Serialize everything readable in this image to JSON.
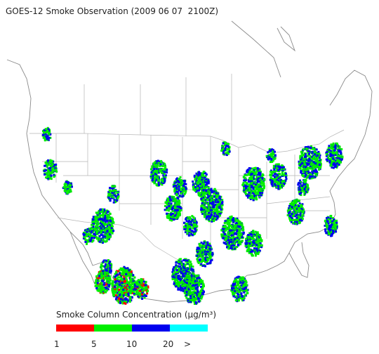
{
  "title": "GOES-12 Smoke Observation (2009 06 07  2100Z)",
  "legend": {
    "title": "Smoke Column Concentration (μg/m³)",
    "colors": [
      "#ff0000",
      "#00ee00",
      "#0000ee",
      "#00ffff"
    ],
    "labels": [
      "1",
      "5",
      "10",
      "20",
      ">"
    ]
  }
}
